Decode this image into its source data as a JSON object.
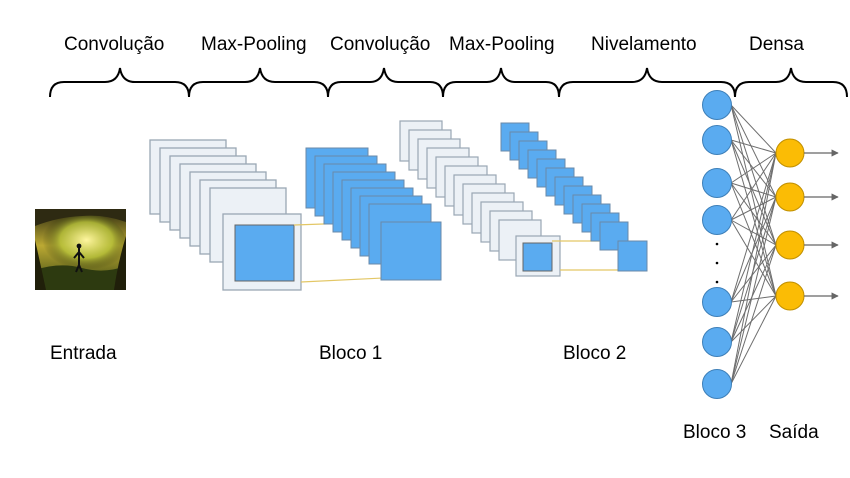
{
  "stages": [
    {
      "label": "Convolução"
    },
    {
      "label": "Max-Pooling"
    },
    {
      "label": "Convolução"
    },
    {
      "label": "Max-Pooling"
    },
    {
      "label": "Nivelamento"
    },
    {
      "label": "Densa"
    }
  ],
  "blocks": {
    "input": "Entrada",
    "block1": "Bloco 1",
    "block2": "Bloco 2",
    "block3": "Bloco 3",
    "output": "Saída"
  },
  "colors": {
    "map_light": "#ecf1f6",
    "map_border": "#9aa7b4",
    "map_blue": "#5aabf0",
    "node_blue": "#5aabf0",
    "node_output": "#fbbc05",
    "connector": "#e3c766",
    "edge": "#666666"
  },
  "icons": {
    "input_image": "cave-photo-icon",
    "ellipsis": "vertical-ellipsis"
  }
}
